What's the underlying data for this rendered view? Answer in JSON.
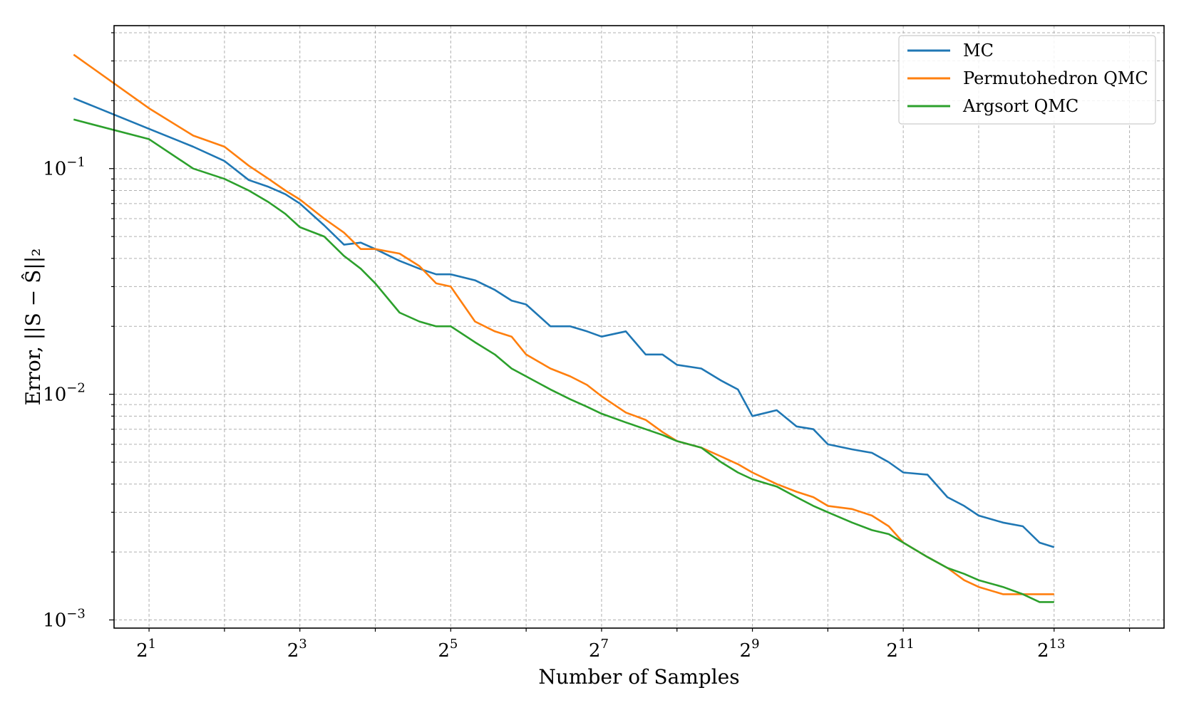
{
  "chart_data": {
    "type": "line",
    "xscale": "log2",
    "yscale": "log10",
    "xlabel": "Number of Samples",
    "ylabel": "Error, ||S − Ŝ||₂",
    "xlim": [
      1.45,
      22500
    ],
    "ylim": [
      0.00092,
      0.43
    ],
    "x_ticks": [
      2,
      8,
      32,
      128,
      512,
      2048,
      8192
    ],
    "x_tick_labels": [
      {
        "base": "2",
        "exp": "1"
      },
      {
        "base": "2",
        "exp": "3"
      },
      {
        "base": "2",
        "exp": "5"
      },
      {
        "base": "2",
        "exp": "7"
      },
      {
        "base": "2",
        "exp": "9"
      },
      {
        "base": "2",
        "exp": "11"
      },
      {
        "base": "2",
        "exp": "13"
      }
    ],
    "y_ticks": [
      0.001,
      0.01,
      0.1
    ],
    "y_tick_labels": [
      {
        "base": "10",
        "exp": "−3"
      },
      {
        "base": "10",
        "exp": "−2"
      },
      {
        "base": "10",
        "exp": "−1"
      }
    ],
    "grid": true,
    "legend_position": "top-right",
    "series": [
      {
        "name": "MC",
        "color": "#1f77b4",
        "x": [
          1,
          2,
          3,
          4,
          5,
          6,
          7,
          8,
          10,
          12,
          14,
          16,
          20,
          24,
          28,
          32,
          40,
          48,
          56,
          64,
          80,
          96,
          112,
          128,
          160,
          192,
          224,
          256,
          320,
          384,
          448,
          512,
          640,
          768,
          896,
          1024,
          1280,
          1536,
          1792,
          2048,
          2560,
          3072,
          3584,
          4096,
          5120,
          6144,
          7168,
          8192
        ],
        "y": [
          0.205,
          0.15,
          0.125,
          0.108,
          0.089,
          0.083,
          0.077,
          0.07,
          0.056,
          0.046,
          0.047,
          0.044,
          0.039,
          0.036,
          0.034,
          0.034,
          0.032,
          0.029,
          0.026,
          0.025,
          0.02,
          0.02,
          0.019,
          0.018,
          0.019,
          0.015,
          0.015,
          0.0135,
          0.013,
          0.0115,
          0.0105,
          0.008,
          0.0085,
          0.0072,
          0.007,
          0.006,
          0.0057,
          0.0055,
          0.005,
          0.0045,
          0.0044,
          0.0035,
          0.0032,
          0.0029,
          0.0027,
          0.0026,
          0.0022,
          0.0021
        ]
      },
      {
        "name": "Permutohedron QMC",
        "color": "#ff7f0e",
        "x": [
          1,
          2,
          3,
          4,
          5,
          6,
          7,
          8,
          10,
          12,
          14,
          16,
          20,
          24,
          28,
          32,
          40,
          48,
          56,
          64,
          80,
          96,
          112,
          128,
          160,
          192,
          224,
          256,
          320,
          384,
          448,
          512,
          640,
          768,
          896,
          1024,
          1280,
          1536,
          1792,
          2048,
          2560,
          3072,
          3584,
          4096,
          5120,
          6144,
          7168,
          8192
        ],
        "y": [
          0.32,
          0.185,
          0.14,
          0.125,
          0.103,
          0.09,
          0.08,
          0.073,
          0.06,
          0.052,
          0.044,
          0.044,
          0.042,
          0.037,
          0.031,
          0.03,
          0.021,
          0.019,
          0.018,
          0.015,
          0.013,
          0.012,
          0.011,
          0.0098,
          0.0083,
          0.0077,
          0.0068,
          0.0062,
          0.0058,
          0.0053,
          0.0049,
          0.0045,
          0.004,
          0.0037,
          0.0035,
          0.0032,
          0.0031,
          0.0029,
          0.0026,
          0.0022,
          0.0019,
          0.0017,
          0.0015,
          0.0014,
          0.0013,
          0.0013,
          0.0013,
          0.0013
        ]
      },
      {
        "name": "Argsort QMC",
        "color": "#2ca02c",
        "x": [
          1,
          2,
          3,
          4,
          5,
          6,
          7,
          8,
          10,
          12,
          14,
          16,
          20,
          24,
          28,
          32,
          40,
          48,
          56,
          64,
          80,
          96,
          112,
          128,
          160,
          192,
          224,
          256,
          320,
          384,
          448,
          512,
          640,
          768,
          896,
          1024,
          1280,
          1536,
          1792,
          2048,
          2560,
          3072,
          3584,
          4096,
          5120,
          6144,
          7168,
          8192
        ],
        "y": [
          0.165,
          0.135,
          0.1,
          0.09,
          0.08,
          0.071,
          0.063,
          0.055,
          0.05,
          0.041,
          0.036,
          0.031,
          0.023,
          0.021,
          0.02,
          0.02,
          0.017,
          0.015,
          0.013,
          0.012,
          0.0105,
          0.0095,
          0.0088,
          0.0082,
          0.0075,
          0.007,
          0.0066,
          0.0062,
          0.0058,
          0.005,
          0.0045,
          0.0042,
          0.0039,
          0.0035,
          0.0032,
          0.003,
          0.0027,
          0.0025,
          0.0024,
          0.0022,
          0.0019,
          0.0017,
          0.0016,
          0.0015,
          0.0014,
          0.0013,
          0.0012,
          0.0012
        ]
      }
    ]
  }
}
